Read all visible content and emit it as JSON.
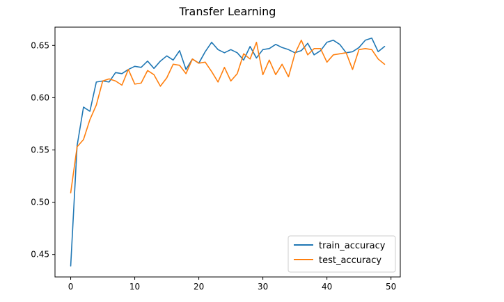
{
  "chart_data": {
    "type": "line",
    "title": "Transfer Learning",
    "xlabel": "",
    "ylabel": "",
    "xlim": [
      -2.45,
      51.45
    ],
    "ylim": [
      0.4285,
      0.6675
    ],
    "xticks": [
      0,
      10,
      20,
      30,
      40,
      50
    ],
    "xtick_labels": [
      "0",
      "10",
      "20",
      "30",
      "40",
      "50"
    ],
    "yticks": [
      0.45,
      0.5,
      0.55,
      0.6,
      0.65
    ],
    "ytick_labels": [
      "0.45",
      "0.50",
      "0.55",
      "0.60",
      "0.65"
    ],
    "grid": false,
    "legend_position": "lower-right",
    "series": [
      {
        "name": "train_accuracy",
        "color": "#1f77b4",
        "x": [
          0,
          1,
          2,
          3,
          4,
          5,
          6,
          7,
          8,
          9,
          10,
          11,
          12,
          13,
          14,
          15,
          16,
          17,
          18,
          19,
          20,
          21,
          22,
          23,
          24,
          25,
          26,
          27,
          28,
          29,
          30,
          31,
          32,
          33,
          34,
          35,
          36,
          37,
          38,
          39,
          40,
          41,
          42,
          43,
          44,
          45,
          46,
          47,
          48,
          49
        ],
        "values": [
          0.439,
          0.554,
          0.591,
          0.587,
          0.615,
          0.616,
          0.615,
          0.624,
          0.623,
          0.627,
          0.63,
          0.629,
          0.635,
          0.628,
          0.635,
          0.64,
          0.636,
          0.645,
          0.627,
          0.637,
          0.633,
          0.644,
          0.653,
          0.646,
          0.643,
          0.646,
          0.643,
          0.636,
          0.649,
          0.638,
          0.646,
          0.647,
          0.651,
          0.648,
          0.646,
          0.643,
          0.645,
          0.652,
          0.641,
          0.645,
          0.653,
          0.655,
          0.651,
          0.643,
          0.644,
          0.648,
          0.655,
          0.657,
          0.644,
          0.649
        ]
      },
      {
        "name": "test_accuracy",
        "color": "#ff7f0e",
        "x": [
          0,
          1,
          2,
          3,
          4,
          5,
          6,
          7,
          8,
          9,
          10,
          11,
          12,
          13,
          14,
          15,
          16,
          17,
          18,
          19,
          20,
          21,
          22,
          23,
          24,
          25,
          26,
          27,
          28,
          29,
          30,
          31,
          32,
          33,
          34,
          35,
          36,
          37,
          38,
          39,
          40,
          41,
          42,
          43,
          44,
          45,
          46,
          47,
          48,
          49
        ],
        "values": [
          0.509,
          0.553,
          0.56,
          0.579,
          0.593,
          0.616,
          0.618,
          0.616,
          0.612,
          0.627,
          0.613,
          0.614,
          0.626,
          0.622,
          0.611,
          0.619,
          0.632,
          0.631,
          0.623,
          0.637,
          0.633,
          0.634,
          0.625,
          0.615,
          0.629,
          0.616,
          0.623,
          0.642,
          0.637,
          0.653,
          0.622,
          0.636,
          0.622,
          0.632,
          0.62,
          0.642,
          0.655,
          0.641,
          0.647,
          0.647,
          0.634,
          0.641,
          0.642,
          0.643,
          0.627,
          0.646,
          0.647,
          0.646,
          0.637,
          0.632
        ]
      }
    ]
  }
}
